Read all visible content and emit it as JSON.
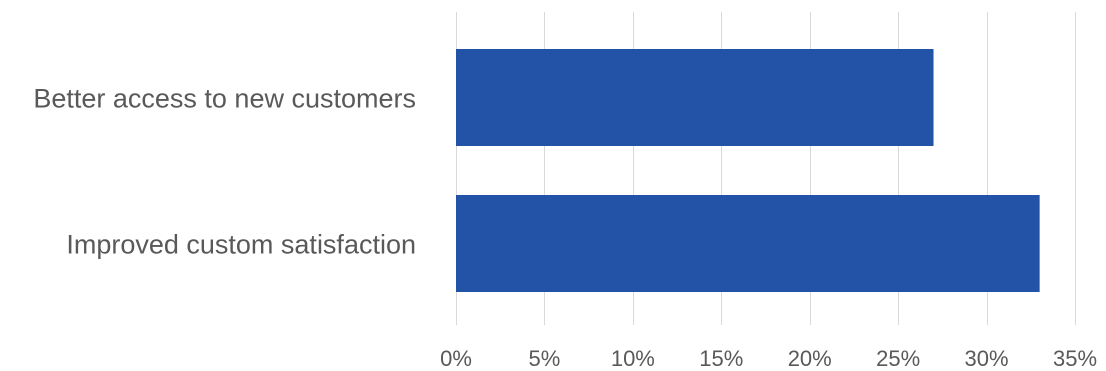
{
  "chart_data": {
    "type": "bar",
    "orientation": "horizontal",
    "categories": [
      "Better access to new customers",
      "Improved custom satisfaction"
    ],
    "values": [
      27,
      33
    ],
    "value_format": "percent",
    "xlim": [
      0,
      35
    ],
    "xticks": [
      0,
      5,
      10,
      15,
      20,
      25,
      30,
      35
    ],
    "xtick_labels": [
      "0%",
      "5%",
      "10%",
      "15%",
      "20%",
      "25%",
      "30%",
      "35%"
    ],
    "grid": "vertical",
    "legend": "none",
    "bar_color": "#2353a6"
  }
}
